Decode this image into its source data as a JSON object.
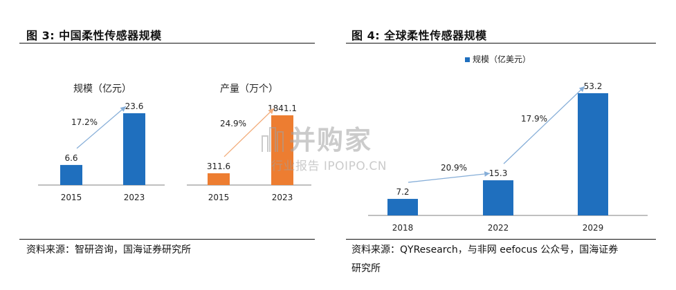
{
  "left": {
    "fig_title": "图 3:  中国柔性传感器规模",
    "source": "资料来源：智研咨询，国海证券研究所"
  },
  "right": {
    "fig_title": "图 4:  全球柔性传感器规模",
    "source_line1": "资料来源：QYResearch，与非网 eefocus 公众号，国海证券",
    "source_line2": "研究所"
  },
  "watermark": {
    "main": "并购家",
    "sub": "行业报告 IPOIPO.CN"
  },
  "colors": {
    "blue": "#1f6fbe",
    "orange": "#ed7d31",
    "blue_arrow": "#86aed8",
    "orange_arrow": "#f2ac7a",
    "axis": "#7f7f7f"
  },
  "chart_data": [
    {
      "type": "bar",
      "title": "规模（亿元）",
      "categories": [
        "2015",
        "2023"
      ],
      "values": [
        6.6,
        23.6
      ],
      "data_labels": [
        "6.6",
        "23.6"
      ],
      "annotations": [
        "17.2%"
      ],
      "color": "#1f6fbe"
    },
    {
      "type": "bar",
      "title": "产量（万个）",
      "categories": [
        "2015",
        "2023"
      ],
      "values": [
        311.6,
        1841.1
      ],
      "data_labels": [
        "311.6",
        "1841.1"
      ],
      "annotations": [
        "24.9%"
      ],
      "color": "#ed7d31"
    },
    {
      "type": "bar",
      "legend": "规模（亿美元）",
      "legend_position": "top-left",
      "categories": [
        "2018",
        "2022",
        "2029"
      ],
      "values": [
        7.2,
        15.3,
        53.2
      ],
      "data_labels": [
        "7.2",
        "15.3",
        "53.2"
      ],
      "annotations": [
        "20.9%",
        "17.9%"
      ],
      "color": "#1f6fbe"
    }
  ]
}
